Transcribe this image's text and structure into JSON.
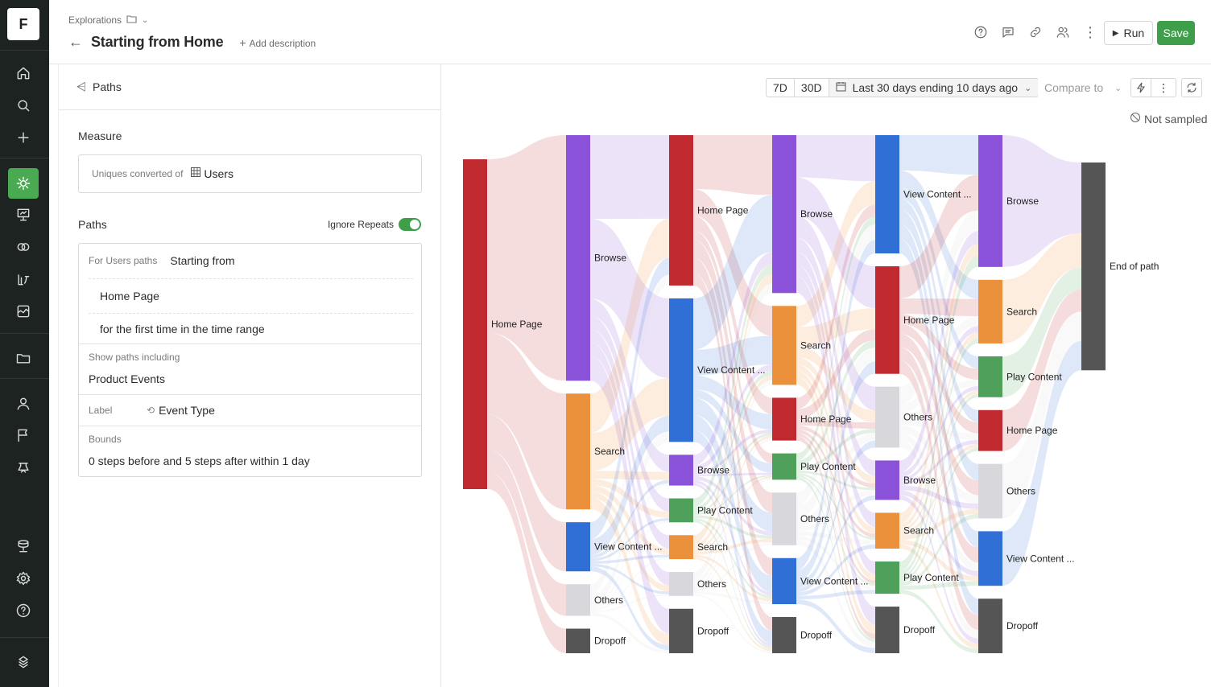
{
  "app": {
    "logo": "F"
  },
  "breadcrumb": {
    "section": "Explorations"
  },
  "page": {
    "title": "Starting from Home",
    "add_description": "Add description"
  },
  "toolbar": {
    "run_label": "Run",
    "save_label": "Save"
  },
  "left_panel": {
    "header": "Paths",
    "measure": {
      "title": "Measure",
      "prefix": "Uniques converted of",
      "value": "Users"
    },
    "paths": {
      "title": "Paths",
      "ignore_repeats_label": "Ignore Repeats",
      "ignore_repeats_on": true,
      "for_label": "For Users paths",
      "starting_from": "Starting from",
      "event": "Home Page",
      "timing": "for the first time in the time range",
      "show_including_label": "Show paths including",
      "show_including_value": "Product Events",
      "label_label": "Label",
      "label_value": "Event Type",
      "bounds_label": "Bounds",
      "bounds_value": "0 steps before and 5 steps after within 1 day"
    }
  },
  "controls": {
    "range_7d": "7D",
    "range_30d": "30D",
    "date_range": "Last 30 days ending 10 days ago",
    "compare": "Compare to",
    "sampling": "Not sampled"
  },
  "colors": {
    "home": "#c0292d",
    "browse": "#8a52d8",
    "search": "#ec913b",
    "view": "#2f6fd6",
    "play": "#4ea05a",
    "others": "#d8d8dc",
    "dropoff": "#555555",
    "end": "#555555",
    "accent": "#3f9e49"
  },
  "chart_data": {
    "type": "sankey",
    "steps": [
      {
        "step": 0,
        "nodes": [
          {
            "label": "Home Page",
            "cat": "home",
            "value": 100
          }
        ]
      },
      {
        "step": 1,
        "nodes": [
          {
            "label": "Browse",
            "cat": "browse",
            "value": 70
          },
          {
            "label": "Search",
            "cat": "search",
            "value": 33
          },
          {
            "label": "View Content ...",
            "cat": "view",
            "value": 14
          },
          {
            "label": "Others",
            "cat": "others",
            "value": 9
          },
          {
            "label": "Dropoff",
            "cat": "dropoff",
            "value": 7
          }
        ]
      },
      {
        "step": 2,
        "nodes": [
          {
            "label": "Home Page",
            "cat": "home",
            "value": 44
          },
          {
            "label": "View Content ...",
            "cat": "view",
            "value": 42
          },
          {
            "label": "Browse",
            "cat": "browse",
            "value": 9
          },
          {
            "label": "Play Content",
            "cat": "play",
            "value": 7
          },
          {
            "label": "Search",
            "cat": "search",
            "value": 7
          },
          {
            "label": "Others",
            "cat": "others",
            "value": 7
          },
          {
            "label": "Dropoff",
            "cat": "dropoff",
            "value": 13
          }
        ]
      },
      {
        "step": 3,
        "nodes": [
          {
            "label": "Browse",
            "cat": "browse",
            "value": 48
          },
          {
            "label": "Search",
            "cat": "search",
            "value": 24
          },
          {
            "label": "Home Page",
            "cat": "home",
            "value": 13
          },
          {
            "label": "Play Content",
            "cat": "play",
            "value": 8
          },
          {
            "label": "Others",
            "cat": "others",
            "value": 16
          },
          {
            "label": "View Content ...",
            "cat": "view",
            "value": 14
          },
          {
            "label": "Dropoff",
            "cat": "dropoff",
            "value": 11
          }
        ]
      },
      {
        "step": 4,
        "nodes": [
          {
            "label": "View Content ...",
            "cat": "view",
            "value": 33
          },
          {
            "label": "Home Page",
            "cat": "home",
            "value": 30
          },
          {
            "label": "Others",
            "cat": "others",
            "value": 17
          },
          {
            "label": "Browse",
            "cat": "browse",
            "value": 11
          },
          {
            "label": "Search",
            "cat": "search",
            "value": 10
          },
          {
            "label": "Play Content",
            "cat": "play",
            "value": 9
          },
          {
            "label": "Dropoff",
            "cat": "dropoff",
            "value": 13
          }
        ]
      },
      {
        "step": 5,
        "nodes": [
          {
            "label": "Browse",
            "cat": "browse",
            "value": 29
          },
          {
            "label": "Search",
            "cat": "search",
            "value": 14
          },
          {
            "label": "Play Content",
            "cat": "play",
            "value": 9
          },
          {
            "label": "Home Page",
            "cat": "home",
            "value": 9
          },
          {
            "label": "Others",
            "cat": "others",
            "value": 12
          },
          {
            "label": "View Content ...",
            "cat": "view",
            "value": 12
          },
          {
            "label": "Dropoff",
            "cat": "dropoff",
            "value": 12
          }
        ]
      },
      {
        "step": 6,
        "nodes": [
          {
            "label": "End of path",
            "cat": "end",
            "value": 63
          }
        ]
      }
    ]
  }
}
